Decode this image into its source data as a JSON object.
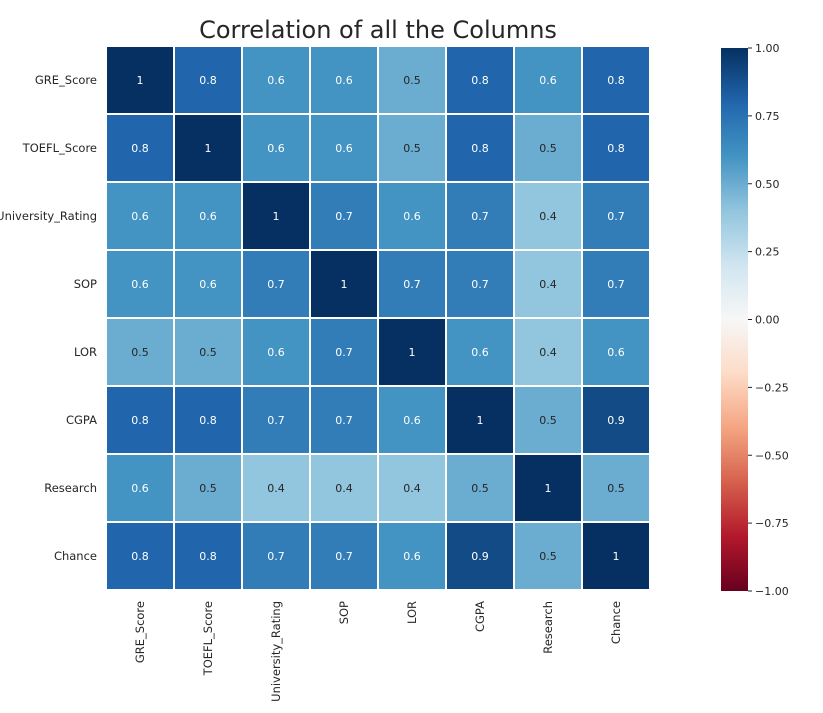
{
  "chart_data": {
    "type": "heatmap",
    "title": "Correlation of all the Columns",
    "rows": [
      "GRE_Score",
      "TOEFL_Score",
      "University_Rating",
      "SOP",
      "LOR",
      "CGPA",
      "Research",
      "Chance"
    ],
    "columns": [
      "GRE_Score",
      "TOEFL_Score",
      "University_Rating",
      "SOP",
      "LOR",
      "CGPA",
      "Research",
      "Chance"
    ],
    "values": [
      [
        1,
        0.8,
        0.6,
        0.6,
        0.5,
        0.8,
        0.6,
        0.8
      ],
      [
        0.8,
        1,
        0.6,
        0.6,
        0.5,
        0.8,
        0.5,
        0.8
      ],
      [
        0.6,
        0.6,
        1,
        0.7,
        0.6,
        0.7,
        0.4,
        0.7
      ],
      [
        0.6,
        0.6,
        0.7,
        1,
        0.7,
        0.7,
        0.4,
        0.7
      ],
      [
        0.5,
        0.5,
        0.6,
        0.7,
        1,
        0.6,
        0.4,
        0.6
      ],
      [
        0.8,
        0.8,
        0.7,
        0.7,
        0.6,
        1,
        0.5,
        0.9
      ],
      [
        0.6,
        0.5,
        0.4,
        0.4,
        0.4,
        0.5,
        1,
        0.5
      ],
      [
        0.8,
        0.8,
        0.7,
        0.7,
        0.6,
        0.9,
        0.5,
        1
      ]
    ],
    "colormap": "RdBu",
    "vmin": -1,
    "vmax": 1,
    "colorbar_ticks": [
      "1.00",
      "0.75",
      "0.50",
      "0.25",
      "0.00",
      "−0.25",
      "−0.50",
      "−0.75",
      "−1.00"
    ],
    "colorbar_tick_values": [
      1,
      0.75,
      0.5,
      0.25,
      0,
      -0.25,
      -0.5,
      -0.75,
      -1
    ],
    "colorbar_position": "right",
    "cell_border_color": "#ffffff"
  }
}
